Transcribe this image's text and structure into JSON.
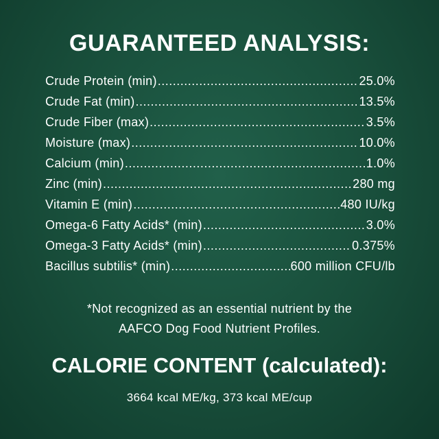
{
  "title": "GUARANTEED ANALYSIS:",
  "rows": [
    {
      "label": "Crude Protein (min)",
      "value": "25.0%"
    },
    {
      "label": "Crude Fat (min)",
      "value": "13.5%"
    },
    {
      "label": "Crude Fiber (max)",
      "value": "3.5%"
    },
    {
      "label": "Moisture (max)",
      "value": "10.0%"
    },
    {
      "label": "Calcium (min)",
      "value": "1.0%"
    },
    {
      "label": "Zinc (min)",
      "value": "280 mg"
    },
    {
      "label": "Vitamin E (min)",
      "value": "480 IU/kg"
    },
    {
      "label": "Omega-6 Fatty Acids* (min)",
      "value": "3.0%"
    },
    {
      "label": "Omega-3 Fatty Acids* (min)",
      "value": "0.375%"
    },
    {
      "label": "Bacillus subtilis* (min)",
      "value": "600 million CFU/lb"
    }
  ],
  "footnote": {
    "line1": "*Not recognized as an essential nutrient by the",
    "line2": "AAFCO Dog Food Nutrient Profiles."
  },
  "calorie": {
    "heading": "CALORIE CONTENT (calculated):",
    "value": "3664 kcal ME/kg, 373 kcal ME/cup"
  },
  "colors": {
    "background": "#1c5541",
    "text": "#ffffff"
  }
}
